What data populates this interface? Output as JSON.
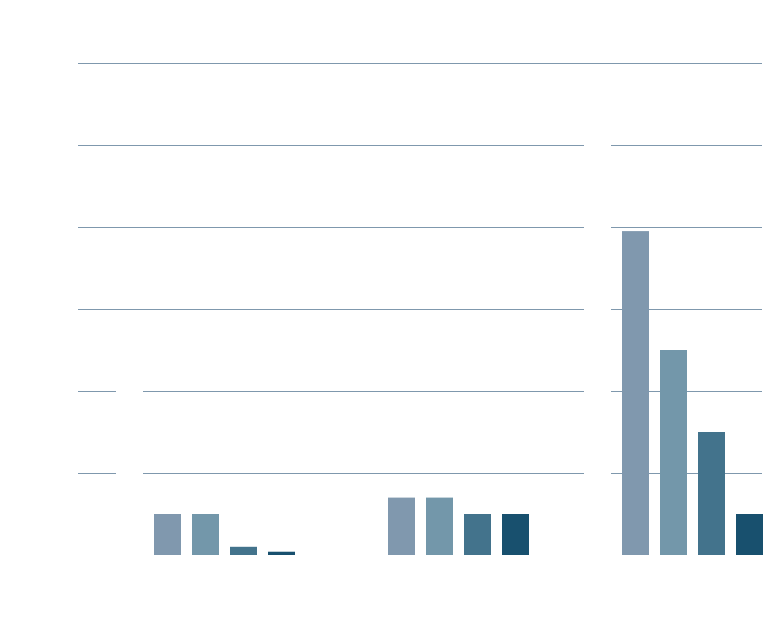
{
  "chart_data": {
    "type": "bar",
    "title": "",
    "xlabel": "",
    "ylabel": "",
    "ylim": [
      0,
      6
    ],
    "grid": true,
    "groups": [
      {
        "values": [
          0.5,
          0.5,
          0.1,
          0.04
        ]
      },
      {
        "values": [
          0.7,
          0.7,
          0.5,
          0.5
        ]
      },
      {
        "values": [
          3.95,
          2.5,
          1.5,
          0.5
        ]
      }
    ],
    "series_colors": [
      "#8098ae",
      "#7397aa",
      "#43738c",
      "#18506e"
    ]
  }
}
